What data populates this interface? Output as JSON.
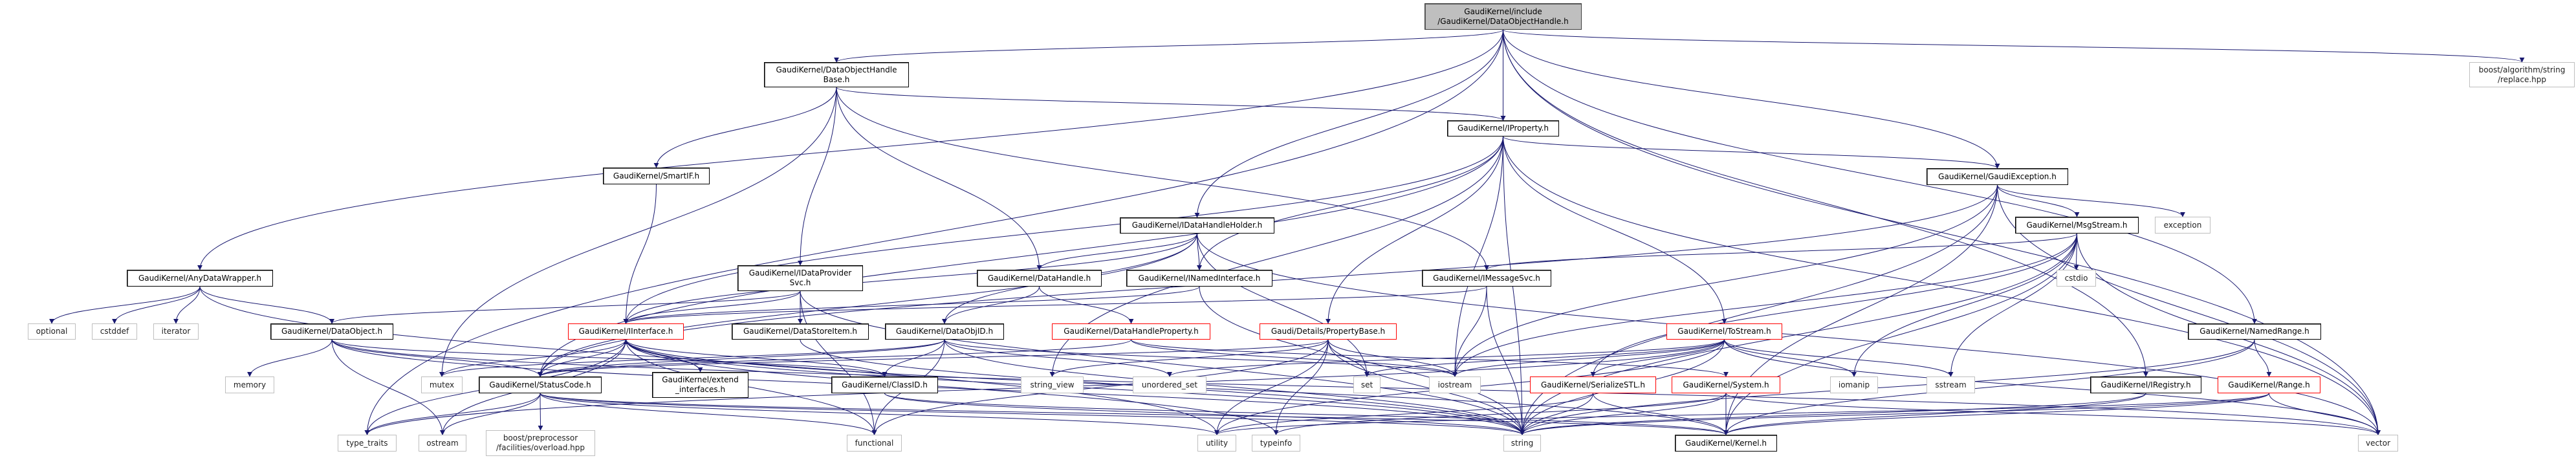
{
  "colors": {
    "edge": "#191970",
    "root_fill": "#bfbfbf",
    "red_border": "#ff0000",
    "external_border": "#bfbfbf"
  },
  "graph": {
    "nodes": [
      {
        "id": "root",
        "label": "GaudiKernel/include\n/GaudiKernel/DataObjectHandle.h",
        "kind": "root"
      },
      {
        "id": "dohb",
        "label": "GaudiKernel/DataObjectHandle\nBase.h",
        "kind": "internal"
      },
      {
        "id": "boost_replace",
        "label": "boost/algorithm/string\n/replace.hpp",
        "kind": "external"
      },
      {
        "id": "iproperty",
        "label": "GaudiKernel/IProperty.h",
        "kind": "internal"
      },
      {
        "id": "smartif",
        "label": "GaudiKernel/SmartIF.h",
        "kind": "internal"
      },
      {
        "id": "gaudiexc",
        "label": "GaudiKernel/GaudiException.h",
        "kind": "internal"
      },
      {
        "id": "idhh",
        "label": "GaudiKernel/IDataHandleHolder.h",
        "kind": "internal"
      },
      {
        "id": "msgstream",
        "label": "GaudiKernel/MsgStream.h",
        "kind": "internal"
      },
      {
        "id": "exception",
        "label": "exception",
        "kind": "external"
      },
      {
        "id": "anydw",
        "label": "GaudiKernel/AnyDataWrapper.h",
        "kind": "internal"
      },
      {
        "id": "idps",
        "label": "GaudiKernel/IDataProvider\nSvc.h",
        "kind": "internal"
      },
      {
        "id": "datahandle",
        "label": "GaudiKernel/DataHandle.h",
        "kind": "internal"
      },
      {
        "id": "inamed",
        "label": "GaudiKernel/INamedInterface.h",
        "kind": "internal"
      },
      {
        "id": "imsgsvc",
        "label": "GaudiKernel/IMessageSvc.h",
        "kind": "internal"
      },
      {
        "id": "cstdio",
        "label": "cstdio",
        "kind": "external"
      },
      {
        "id": "optional",
        "label": "optional",
        "kind": "external"
      },
      {
        "id": "cstddef",
        "label": "cstddef",
        "kind": "external"
      },
      {
        "id": "iterator",
        "label": "iterator",
        "kind": "external"
      },
      {
        "id": "dataobject",
        "label": "GaudiKernel/DataObject.h",
        "kind": "internal"
      },
      {
        "id": "iinterface",
        "label": "GaudiKernel/IInterface.h",
        "kind": "red"
      },
      {
        "id": "datastoreitem",
        "label": "GaudiKernel/DataStoreItem.h",
        "kind": "internal"
      },
      {
        "id": "dataobjid",
        "label": "GaudiKernel/DataObjID.h",
        "kind": "internal"
      },
      {
        "id": "dhprop",
        "label": "GaudiKernel/DataHandleProperty.h",
        "kind": "red"
      },
      {
        "id": "propbase",
        "label": "Gaudi/Details/PropertyBase.h",
        "kind": "red"
      },
      {
        "id": "tostream",
        "label": "GaudiKernel/ToStream.h",
        "kind": "red"
      },
      {
        "id": "namedrange",
        "label": "GaudiKernel/NamedRange.h",
        "kind": "internal"
      },
      {
        "id": "memory",
        "label": "memory",
        "kind": "external"
      },
      {
        "id": "mutex",
        "label": "mutex",
        "kind": "external"
      },
      {
        "id": "statuscode",
        "label": "GaudiKernel/StatusCode.h",
        "kind": "internal"
      },
      {
        "id": "extend",
        "label": "GaudiKernel/extend\n_interfaces.h",
        "kind": "internal"
      },
      {
        "id": "classid",
        "label": "GaudiKernel/ClassID.h",
        "kind": "internal"
      },
      {
        "id": "string_view",
        "label": "string_view",
        "kind": "external"
      },
      {
        "id": "unordered_set",
        "label": "unordered_set",
        "kind": "external"
      },
      {
        "id": "set",
        "label": "set",
        "kind": "external"
      },
      {
        "id": "iostream",
        "label": "iostream",
        "kind": "external"
      },
      {
        "id": "serializestl",
        "label": "GaudiKernel/SerializeSTL.h",
        "kind": "red"
      },
      {
        "id": "system",
        "label": "GaudiKernel/System.h",
        "kind": "red"
      },
      {
        "id": "iomanip",
        "label": "iomanip",
        "kind": "external"
      },
      {
        "id": "sstream",
        "label": "sstream",
        "kind": "external"
      },
      {
        "id": "iregistry",
        "label": "GaudiKernel/IRegistry.h",
        "kind": "internal"
      },
      {
        "id": "range",
        "label": "GaudiKernel/Range.h",
        "kind": "red"
      },
      {
        "id": "type_traits",
        "label": "type_traits",
        "kind": "external"
      },
      {
        "id": "ostream",
        "label": "ostream",
        "kind": "external"
      },
      {
        "id": "overload",
        "label": "boost/preprocessor\n/facilities/overload.hpp",
        "kind": "external"
      },
      {
        "id": "functional",
        "label": "functional",
        "kind": "external"
      },
      {
        "id": "utility",
        "label": "utility",
        "kind": "external"
      },
      {
        "id": "typeinfo",
        "label": "typeinfo",
        "kind": "external"
      },
      {
        "id": "string",
        "label": "string",
        "kind": "external"
      },
      {
        "id": "kernel",
        "label": "GaudiKernel/Kernel.h",
        "kind": "internal"
      },
      {
        "id": "vector",
        "label": "vector",
        "kind": "external"
      }
    ],
    "edges": [
      [
        "root",
        "dohb"
      ],
      [
        "root",
        "anydw"
      ],
      [
        "root",
        "type_traits"
      ],
      [
        "root",
        "idhh"
      ],
      [
        "root",
        "iproperty"
      ],
      [
        "root",
        "gaudiexc"
      ],
      [
        "root",
        "namedrange"
      ],
      [
        "root",
        "iregistry"
      ],
      [
        "root",
        "vector"
      ],
      [
        "root",
        "boost_replace"
      ],
      [
        "dohb",
        "smartif"
      ],
      [
        "dohb",
        "mutex"
      ],
      [
        "dohb",
        "idps"
      ],
      [
        "dohb",
        "datahandle"
      ],
      [
        "dohb",
        "iproperty"
      ],
      [
        "dohb",
        "imsgsvc"
      ],
      [
        "anydw",
        "optional"
      ],
      [
        "anydw",
        "cstddef"
      ],
      [
        "anydw",
        "iterator"
      ],
      [
        "anydw",
        "dataobject"
      ],
      [
        "anydw",
        "utility"
      ],
      [
        "smartif",
        "iinterface"
      ],
      [
        "idps",
        "dataobject"
      ],
      [
        "idps",
        "iinterface"
      ],
      [
        "idps",
        "datastoreitem"
      ],
      [
        "idps",
        "string"
      ],
      [
        "idps",
        "functional"
      ],
      [
        "dataobject",
        "memory"
      ],
      [
        "dataobject",
        "statuscode"
      ],
      [
        "dataobject",
        "classid"
      ],
      [
        "dataobject",
        "ostream"
      ],
      [
        "dataobject",
        "string"
      ],
      [
        "dataobject",
        "vector"
      ],
      [
        "idhh",
        "iinterface"
      ],
      [
        "idhh",
        "datahandle"
      ],
      [
        "idhh",
        "inamed"
      ],
      [
        "idhh",
        "dataobjid"
      ],
      [
        "idhh",
        "set"
      ],
      [
        "idhh",
        "vector"
      ],
      [
        "idhh",
        "statuscode"
      ],
      [
        "datahandle",
        "dataobjid"
      ],
      [
        "datahandle",
        "dhprop"
      ],
      [
        "inamed",
        "iinterface"
      ],
      [
        "inamed",
        "string"
      ],
      [
        "imsgsvc",
        "iinterface"
      ],
      [
        "imsgsvc",
        "iostream"
      ],
      [
        "imsgsvc",
        "string"
      ],
      [
        "iproperty",
        "iinterface"
      ],
      [
        "iproperty",
        "inamed"
      ],
      [
        "iproperty",
        "propbase"
      ],
      [
        "iproperty",
        "tostream"
      ],
      [
        "iproperty",
        "gaudiexc"
      ],
      [
        "iproperty",
        "iostream"
      ],
      [
        "iproperty",
        "string"
      ],
      [
        "iproperty",
        "string_view"
      ],
      [
        "iproperty",
        "vector"
      ],
      [
        "iproperty",
        "statuscode"
      ],
      [
        "gaudiexc",
        "msgstream"
      ],
      [
        "gaudiexc",
        "exception"
      ],
      [
        "gaudiexc",
        "statuscode"
      ],
      [
        "gaudiexc",
        "kernel"
      ],
      [
        "gaudiexc",
        "string"
      ],
      [
        "gaudiexc",
        "iostream"
      ],
      [
        "gaudiexc",
        "vector"
      ],
      [
        "msgstream",
        "imsgsvc"
      ],
      [
        "msgstream",
        "serializestl"
      ],
      [
        "msgstream",
        "cstdio"
      ],
      [
        "msgstream",
        "iomanip"
      ],
      [
        "msgstream",
        "sstream"
      ],
      [
        "msgstream",
        "string"
      ],
      [
        "msgstream",
        "kernel"
      ],
      [
        "msgstream",
        "vector"
      ],
      [
        "msgstream",
        "iostream"
      ],
      [
        "iinterface",
        "statuscode"
      ],
      [
        "iinterface",
        "extend"
      ],
      [
        "iinterface",
        "mutex"
      ],
      [
        "iinterface",
        "type_traits"
      ],
      [
        "iinterface",
        "ostream"
      ],
      [
        "iinterface",
        "functional"
      ],
      [
        "iinterface",
        "classid"
      ],
      [
        "iinterface",
        "string"
      ],
      [
        "iinterface",
        "kernel"
      ],
      [
        "iinterface",
        "typeinfo"
      ],
      [
        "extend",
        "iinterface"
      ],
      [
        "statuscode",
        "type_traits"
      ],
      [
        "statuscode",
        "ostream"
      ],
      [
        "statuscode",
        "overload"
      ],
      [
        "statuscode",
        "utility"
      ],
      [
        "statuscode",
        "functional"
      ],
      [
        "statuscode",
        "kernel"
      ],
      [
        "statuscode",
        "string"
      ],
      [
        "dataobjid",
        "classid"
      ],
      [
        "dataobjid",
        "statuscode"
      ],
      [
        "dataobjid",
        "string"
      ],
      [
        "dataobjid",
        "unordered_set"
      ],
      [
        "dataobjid",
        "iostream"
      ],
      [
        "dataobjid",
        "functional"
      ],
      [
        "dataobjid",
        "mutex"
      ],
      [
        "dhprop",
        "statuscode"
      ],
      [
        "dhprop",
        "iostream"
      ],
      [
        "dhprop",
        "system"
      ],
      [
        "propbase",
        "string_view"
      ],
      [
        "propbase",
        "set"
      ],
      [
        "propbase",
        "iostream"
      ],
      [
        "propbase",
        "utility"
      ],
      [
        "propbase",
        "typeinfo"
      ],
      [
        "propbase",
        "string"
      ],
      [
        "propbase",
        "statuscode"
      ],
      [
        "propbase",
        "functional"
      ],
      [
        "tostream",
        "serializestl"
      ],
      [
        "tostream",
        "set"
      ],
      [
        "tostream",
        "iomanip"
      ],
      [
        "tostream",
        "sstream"
      ],
      [
        "tostream",
        "iostream"
      ],
      [
        "tostream",
        "string"
      ],
      [
        "tostream",
        "vector"
      ],
      [
        "tostream",
        "utility"
      ],
      [
        "tostream",
        "type_traits"
      ],
      [
        "tostream",
        "unordered_set"
      ],
      [
        "serializestl",
        "utility"
      ],
      [
        "serializestl",
        "string"
      ],
      [
        "serializestl",
        "kernel"
      ],
      [
        "system",
        "kernel"
      ],
      [
        "system",
        "string"
      ],
      [
        "system",
        "typeinfo"
      ],
      [
        "system",
        "vector"
      ],
      [
        "classid",
        "kernel"
      ],
      [
        "classid",
        "string"
      ],
      [
        "datastoreitem",
        "string"
      ],
      [
        "namedrange",
        "range"
      ],
      [
        "namedrange",
        "kernel"
      ],
      [
        "namedrange",
        "string"
      ],
      [
        "iregistry",
        "kernel"
      ],
      [
        "iregistry",
        "string"
      ],
      [
        "range",
        "vector"
      ],
      [
        "range",
        "kernel"
      ],
      [
        "range",
        "string"
      ],
      [
        "range",
        "utility"
      ]
    ]
  }
}
